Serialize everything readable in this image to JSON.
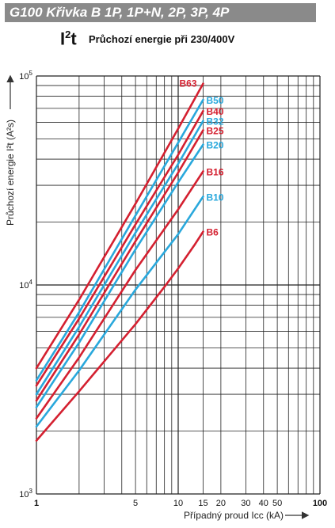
{
  "header": {
    "title": "G100 Křivka B  1P, 1P+N, 2P, 3P, 4P",
    "subtitle_main": "I",
    "subtitle_sup": "2",
    "subtitle_end": "t",
    "subtitle_text": "Průchozí energie při 230/400V"
  },
  "chart_data": {
    "type": "line",
    "title": "",
    "xlabel": "Případný proud Icc (kA)",
    "ylabel": "Průchozí energie I²t (A²s)",
    "xscale": "log",
    "yscale": "log",
    "xlim": [
      1,
      100
    ],
    "ylim": [
      1000,
      100000
    ],
    "grid": true,
    "x_ticks": [
      {
        "value": 1,
        "label": "1"
      },
      {
        "value": 5,
        "label": "5"
      },
      {
        "value": 10,
        "label": "10"
      },
      {
        "value": 15,
        "label": "15"
      },
      {
        "value": 20,
        "label": "20"
      },
      {
        "value": 30,
        "label": "30"
      },
      {
        "value": 40,
        "label": "40"
      },
      {
        "value": 50,
        "label": "50"
      },
      {
        "value": 100,
        "label": "100"
      }
    ],
    "y_ticks": [
      {
        "value": 1000,
        "base": "10",
        "exp": "3"
      },
      {
        "value": 10000,
        "base": "10",
        "exp": "4"
      },
      {
        "value": 100000,
        "base": "10",
        "exp": "5"
      }
    ],
    "series": [
      {
        "name": "B63",
        "color": "#d42030",
        "x": [
          1,
          2,
          5,
          10,
          15
        ],
        "y": [
          4000,
          8500,
          24500,
          56000,
          92000
        ]
      },
      {
        "name": "B50",
        "color": "#29a8dc",
        "x": [
          1,
          2,
          5,
          10,
          15
        ],
        "y": [
          3500,
          7400,
          21500,
          48000,
          77000
        ]
      },
      {
        "name": "B40",
        "color": "#d42030",
        "x": [
          1,
          2,
          5,
          10,
          15
        ],
        "y": [
          3300,
          6900,
          19500,
          42000,
          68000
        ]
      },
      {
        "name": "B32",
        "color": "#29a8dc",
        "x": [
          1,
          2,
          5,
          10,
          15
        ],
        "y": [
          3000,
          6300,
          17800,
          38000,
          61000
        ]
      },
      {
        "name": "B25",
        "color": "#d42030",
        "x": [
          1,
          2,
          5,
          10,
          15
        ],
        "y": [
          2800,
          5800,
          16200,
          34500,
          55000
        ]
      },
      {
        "name": "B20",
        "color": "#29a8dc",
        "x": [
          1,
          2,
          5,
          10,
          15
        ],
        "y": [
          2600,
          5300,
          14800,
          31000,
          47000
        ]
      },
      {
        "name": "B16",
        "color": "#d42030",
        "x": [
          1,
          2,
          5,
          10,
          15
        ],
        "y": [
          2300,
          4500,
          11800,
          23000,
          35000
        ]
      },
      {
        "name": "B10",
        "color": "#29a8dc",
        "x": [
          1,
          2,
          5,
          10,
          15
        ],
        "y": [
          2100,
          3900,
          9500,
          17500,
          26500
        ]
      },
      {
        "name": "B6",
        "color": "#d42030",
        "x": [
          1,
          2,
          5,
          8,
          10,
          13,
          15
        ],
        "y": [
          1800,
          3100,
          6500,
          9800,
          12000,
          15500,
          18000
        ]
      }
    ]
  }
}
